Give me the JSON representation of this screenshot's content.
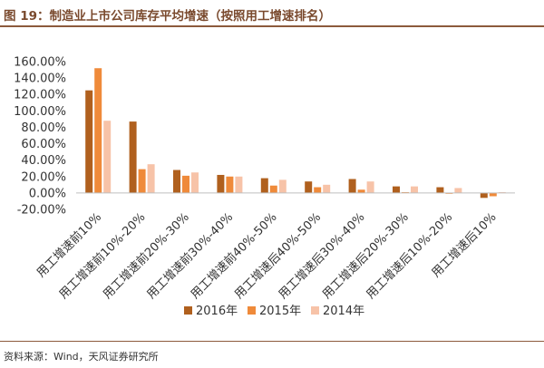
{
  "header": {
    "title": "图 19：制造业上市公司库存平均增速（按照用工增速排名）"
  },
  "footer": {
    "source": "资料来源：Wind，天风证券研究所"
  },
  "colors": {
    "series_2016": "#b0601e",
    "series_2015": "#ef8a3a",
    "series_2014": "#f7c3a8",
    "rule": "#8c5a3c",
    "title": "#7a4a2e"
  },
  "chart_data": {
    "type": "bar",
    "title": "",
    "xlabel": "",
    "ylabel": "",
    "ylim": [
      -20,
      160
    ],
    "yticks": [
      -20,
      0,
      20,
      40,
      60,
      80,
      100,
      120,
      140,
      160
    ],
    "ytick_labels": [
      "-20.00%",
      "0.00%",
      "20.00%",
      "40.00%",
      "60.00%",
      "80.00%",
      "100.00%",
      "120.00%",
      "140.00%",
      "160.00%"
    ],
    "grid": false,
    "legend_position": "bottom-center",
    "categories": [
      "用工增速前10%",
      "用工增速前10%-20%",
      "用工增速前20%-30%",
      "用工增速前30%-40%",
      "用工增速前40%-50%",
      "用工增速后40%-50%",
      "用工增速后30%-40%",
      "用工增速后20%-30%",
      "用工增速后10%-20%",
      "用工增速后10%"
    ],
    "series": [
      {
        "name": "2016年",
        "color": "#b0601e",
        "values": [
          125,
          87,
          28,
          22,
          18,
          14,
          17,
          8,
          7,
          -6
        ]
      },
      {
        "name": "2015年",
        "color": "#ef8a3a",
        "values": [
          152,
          29,
          21,
          20,
          9,
          7,
          4,
          1,
          -1,
          -4
        ]
      },
      {
        "name": "2014年",
        "color": "#f7c3a8",
        "values": [
          88,
          35,
          25,
          20,
          16,
          10,
          14,
          8,
          6,
          1
        ]
      }
    ]
  }
}
